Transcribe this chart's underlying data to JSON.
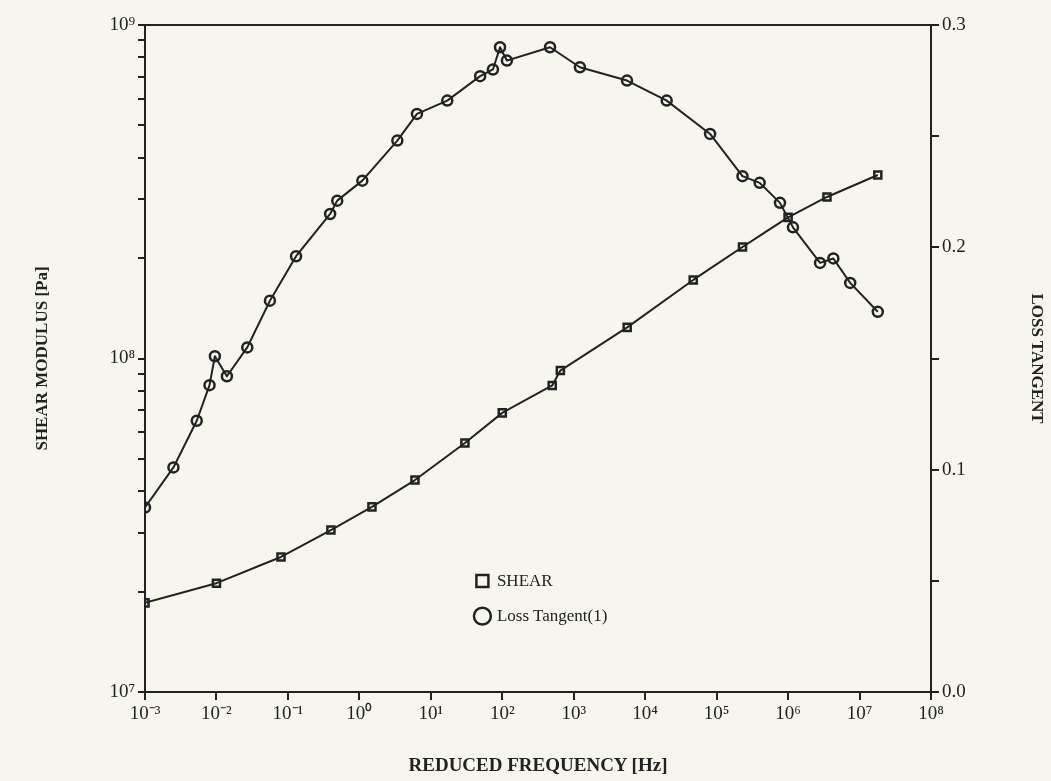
{
  "chart_data": {
    "type": "line",
    "xlabel": "REDUCED FREQUENCY [Hz]",
    "ylabel": "SHEAR MODULUS [Pa]",
    "y2label": "LOSS TANGENT",
    "log": "xy",
    "legend": "bottom",
    "xlim": [
      0.001,
      100000000
    ],
    "xticks": [
      {
        "value": 0.001,
        "label": "10⁻³"
      },
      {
        "value": 0.01,
        "label": "10⁻²"
      },
      {
        "value": 0.1,
        "label": "10⁻¹"
      },
      {
        "value": 1,
        "label": "10⁰"
      },
      {
        "value": 10,
        "label": "10¹"
      },
      {
        "value": 100,
        "label": "10²"
      },
      {
        "value": 1000,
        "label": "10³"
      },
      {
        "value": 10000,
        "label": "10⁴"
      },
      {
        "value": 100000,
        "label": "10⁵"
      },
      {
        "value": 1000000,
        "label": "10⁶"
      },
      {
        "value": 10000000,
        "label": "10⁷"
      },
      {
        "value": 100000000,
        "label": "10⁸"
      }
    ],
    "ylim": [
      10000000,
      1000000000
    ],
    "yticks": [
      {
        "value": 10000000,
        "label": "10⁷"
      },
      {
        "value": 20000000,
        "label": null
      },
      {
        "value": 30000000,
        "label": null
      },
      {
        "value": 40000000,
        "label": null
      },
      {
        "value": 50000000,
        "label": null
      },
      {
        "value": 60000000,
        "label": null
      },
      {
        "value": 70000000,
        "label": null
      },
      {
        "value": 80000000,
        "label": null
      },
      {
        "value": 90000000,
        "label": null
      },
      {
        "value": 100000000,
        "label": "10⁸"
      },
      {
        "value": 200000000,
        "label": null
      },
      {
        "value": 300000000,
        "label": null
      },
      {
        "value": 400000000,
        "label": null
      },
      {
        "value": 500000000,
        "label": null
      },
      {
        "value": 600000000,
        "label": null
      },
      {
        "value": 700000000,
        "label": null
      },
      {
        "value": 800000000,
        "label": null
      },
      {
        "value": 900000000,
        "label": null
      },
      {
        "value": 1000000000,
        "label": "10⁹"
      }
    ],
    "y2lim": [
      0,
      0.3
    ],
    "y2ticks": [
      {
        "value": 0,
        "label": "0.0"
      },
      {
        "value": 0.05,
        "label": null
      },
      0.1,
      {
        "value": 0.15,
        "label": null
      },
      0.2,
      {
        "value": 0.25,
        "label": null
      },
      0.3
    ],
    "series": [
      {
        "name": "SHEAR",
        "color": "#222222",
        "marker": "square",
        "x": [
          0.001,
          0.01,
          0.08,
          0.4,
          1.5,
          6,
          30,
          100,
          500,
          650,
          5600,
          47000,
          230000,
          1000000,
          3500000,
          18000000
        ],
        "values": [
          18500000,
          21200000,
          25400000,
          30600000,
          35900000,
          43200000,
          55800000,
          68700000,
          83000000,
          92000000,
          124000000,
          172000000,
          216000000,
          265000000,
          305000000,
          355000000
        ]
      },
      {
        "name": "Loss Tangent(1)",
        "color": "#222222",
        "marker": "circle",
        "axis": "y2",
        "x": [
          0.001,
          0.0025,
          0.0053,
          0.008,
          0.0095,
          0.014,
          0.027,
          0.056,
          0.13,
          0.39,
          0.49,
          1.1,
          3.4,
          6.4,
          17,
          49,
          74,
          93,
          116,
          466,
          1220,
          5570,
          20000,
          81000,
          230000,
          400000,
          770000,
          1170000,
          2800000,
          4300000,
          7400000,
          18000000
        ],
        "values": [
          0.083,
          0.101,
          0.122,
          0.138,
          0.151,
          0.142,
          0.155,
          0.176,
          0.196,
          0.215,
          0.221,
          0.23,
          0.248,
          0.26,
          0.266,
          0.277,
          0.28,
          0.29,
          0.284,
          0.29,
          0.281,
          0.275,
          0.266,
          0.251,
          0.232,
          0.229,
          0.22,
          0.209,
          0.193,
          0.195,
          0.184,
          0.171
        ]
      }
    ]
  }
}
